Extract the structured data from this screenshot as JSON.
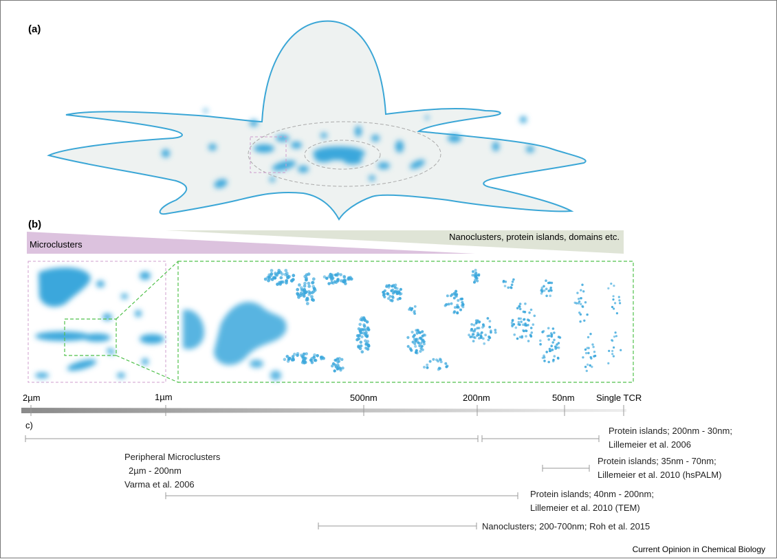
{
  "panels": {
    "a": "(a)",
    "b": "(b)",
    "c": "c)"
  },
  "panel_b": {
    "microclusters_label": "Microclusters",
    "nano_label": "Nanoclusters, protein islands, domains etc."
  },
  "scale_bar": {
    "ticks": [
      {
        "label": "2µm"
      },
      {
        "label": "1µm"
      },
      {
        "label": "500nm"
      },
      {
        "label": "200nm"
      },
      {
        "label": "50nm"
      },
      {
        "label": "Single TCR"
      }
    ]
  },
  "ranges": [
    {
      "lines": [
        "Protein islands; 200nm - 30nm;",
        "Lillemeier et al. 2006"
      ]
    },
    {
      "lines": [
        "Peripheral Microclusters",
        "2µm - 200nm",
        "Varma et al. 2006"
      ]
    },
    {
      "lines": [
        "Protein islands; 35nm - 70nm;",
        "Lillemeier et al. 2010 (hsPALM)"
      ]
    },
    {
      "lines": [
        "Protein islands; 40nm - 200nm;",
        "Lillemeier et al. 2010 (TEM)"
      ]
    },
    {
      "lines": [
        "Nanoclusters; 200-700nm; Roh et al. 2015"
      ]
    }
  ],
  "credit": "Current Opinion in Chemical Biology",
  "colors": {
    "cell_outline": "#3aa6d6",
    "cell_fill": "#eef2f1",
    "cluster": "#3ba7dc",
    "micro_band": "#dcc2de",
    "nano_band": "#dfe4d6",
    "green_dash": "#4fc04a",
    "pink_dash": "#cf9ccd"
  }
}
